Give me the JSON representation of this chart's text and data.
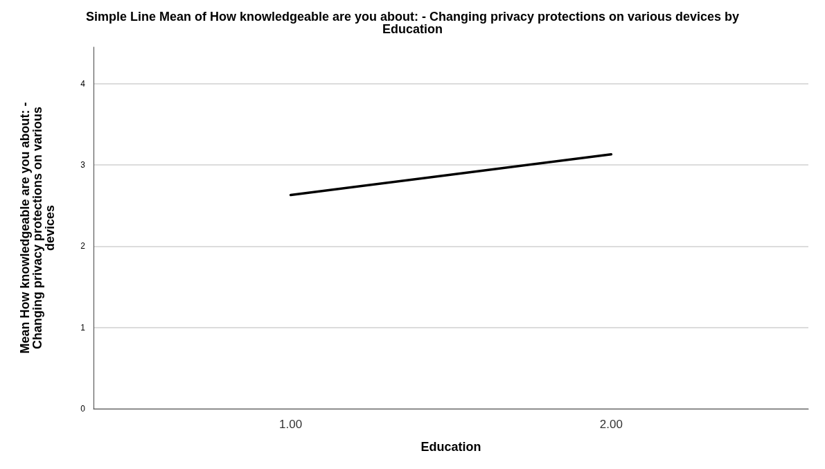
{
  "chart_data": {
    "type": "line",
    "title": "Simple Line Mean of How knowledgeable are you about: - Changing privacy protections on various devices by Education",
    "xlabel": "Education",
    "ylabel": "Mean How knowledgeable are you about: - Changing privacy protections on various devices",
    "x": [
      1,
      2
    ],
    "values": [
      2.63,
      3.13
    ],
    "color": "#000000",
    "xlim": [
      0.385,
      2.615
    ],
    "xticks": [
      {
        "value": 1,
        "label": "1.00"
      },
      {
        "value": 2,
        "label": "2.00"
      }
    ],
    "ylim": [
      0,
      4.45
    ],
    "yticks": [
      0,
      1,
      2,
      3,
      4
    ],
    "grid": "y",
    "marker": "none",
    "line_style": "solid"
  }
}
